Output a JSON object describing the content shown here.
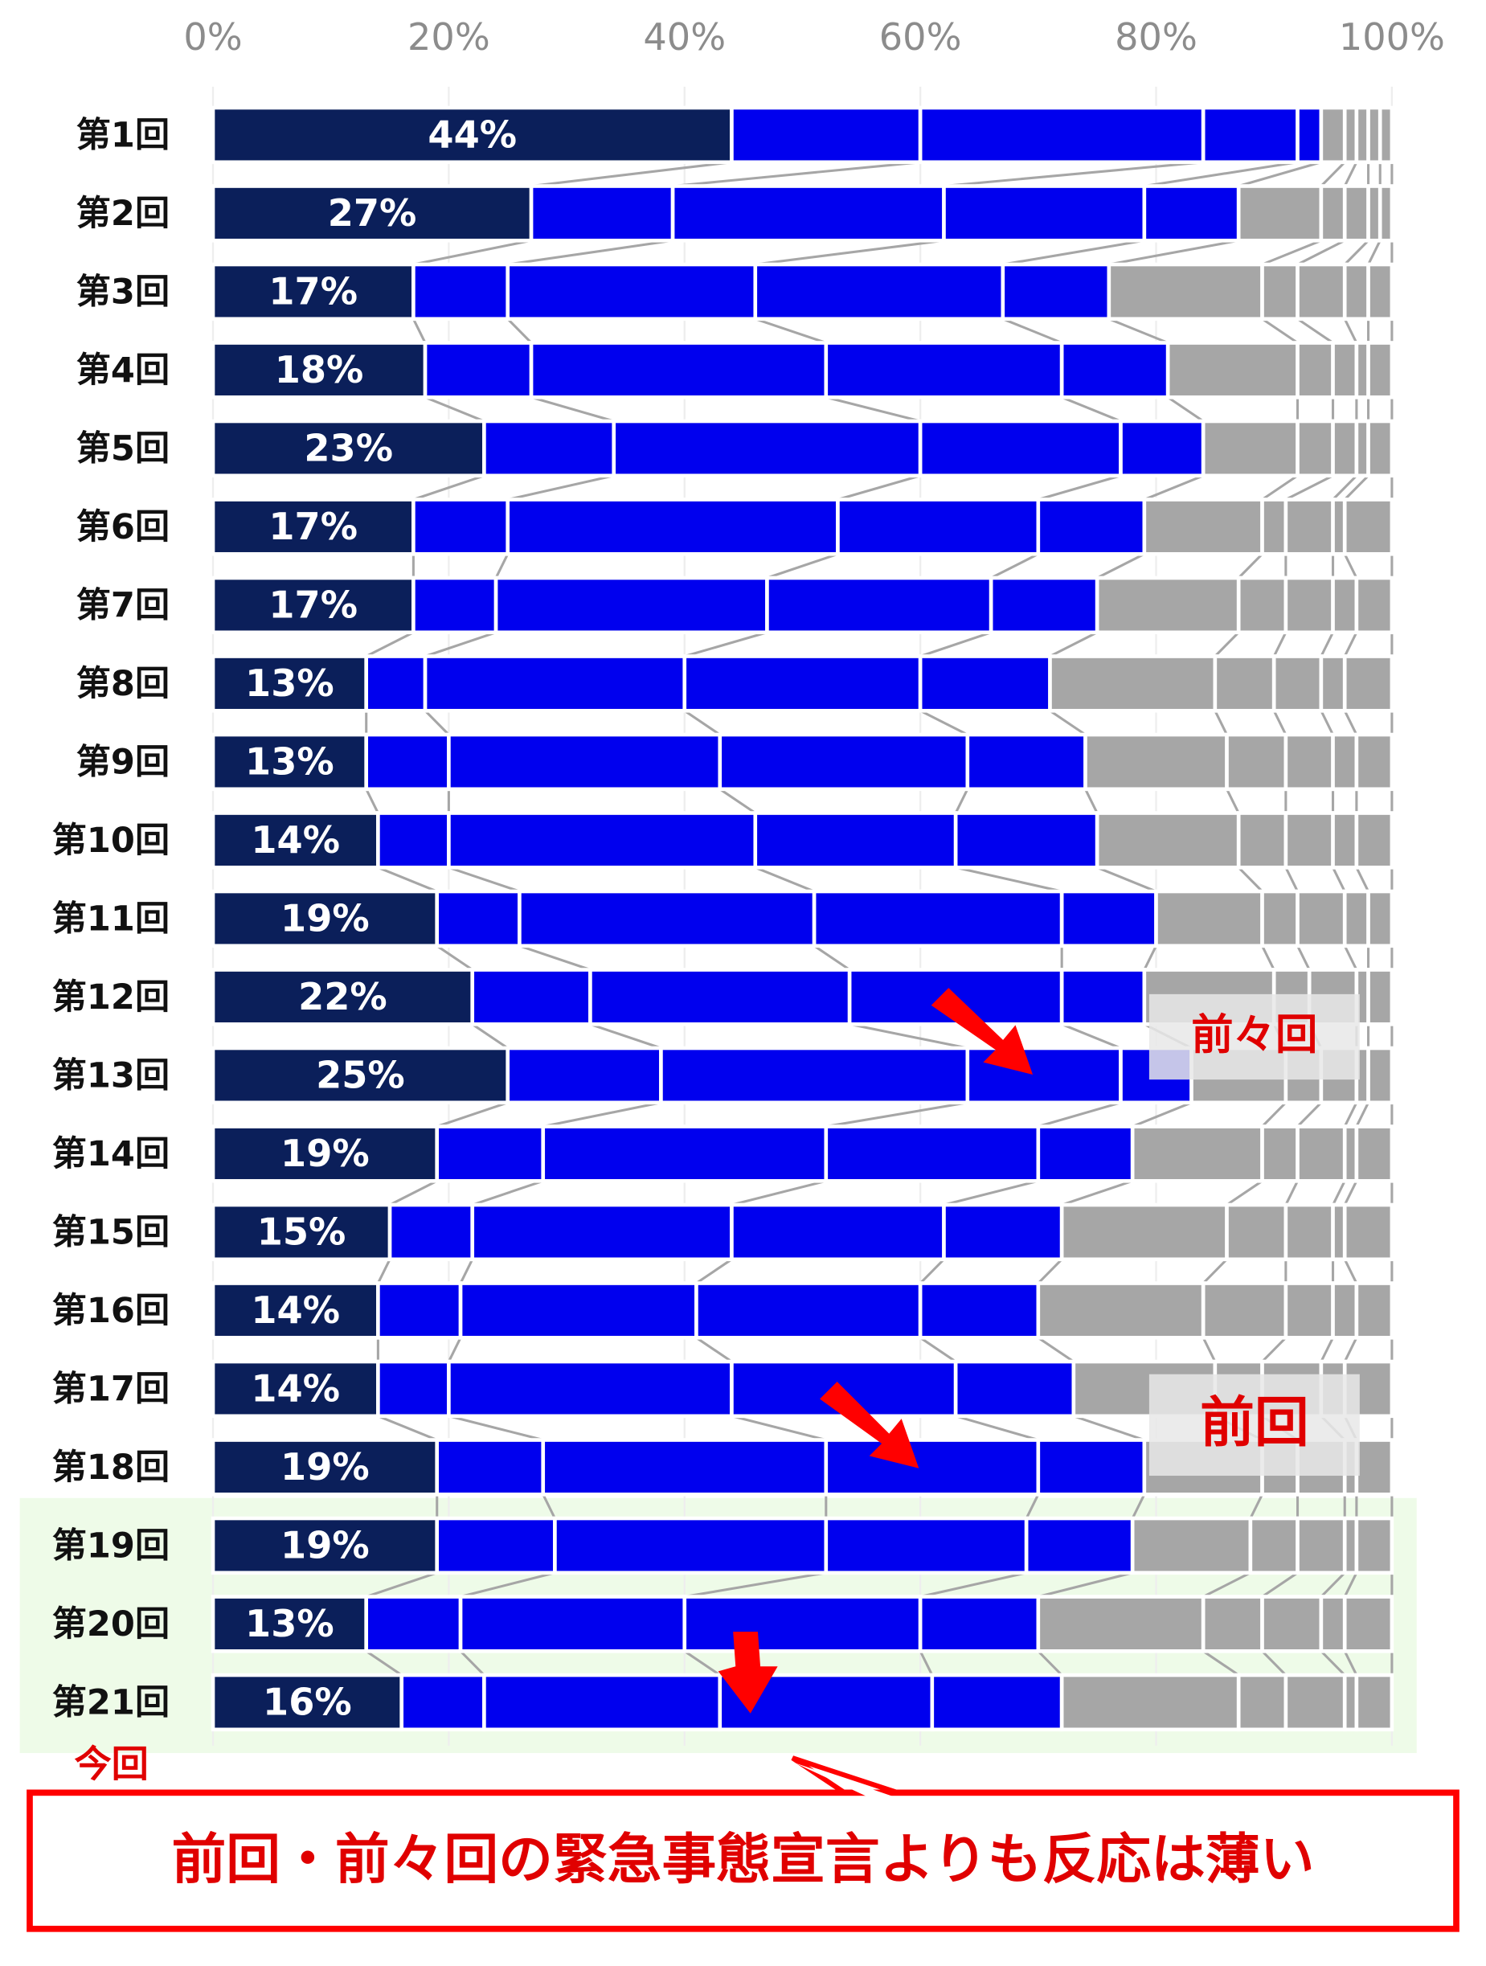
{
  "chart_data": {
    "type": "stacked-bar-horizontal",
    "categories": [
      "第1回",
      "第2回",
      "第3回",
      "第4回",
      "第5回",
      "第6回",
      "第7回",
      "第8回",
      "第9回",
      "第10回",
      "第11回",
      "第12回",
      "第13回",
      "第14回",
      "第15回",
      "第16回",
      "第17回",
      "第18回",
      "第19回",
      "第20回",
      "第21回"
    ],
    "xlim": [
      0,
      100
    ],
    "xticks": [
      {
        "value": 0,
        "label": "0%"
      },
      {
        "value": 20,
        "label": "20%"
      },
      {
        "value": 40,
        "label": "40%"
      },
      {
        "value": 60,
        "label": "60%"
      },
      {
        "value": 80,
        "label": "80%"
      },
      {
        "value": 100,
        "label": "100%"
      }
    ],
    "grid": true,
    "series": [
      {
        "color": "#0b1f5a",
        "values": [
          44,
          27,
          17,
          18,
          23,
          17,
          17,
          13,
          13,
          14,
          19,
          22,
          25,
          19,
          15,
          14,
          14,
          19,
          19,
          13,
          16
        ],
        "value_labels": [
          "44%",
          "27%",
          "17%",
          "18%",
          "23%",
          "17%",
          "17%",
          "13%",
          "13%",
          "14%",
          "19%",
          "22%",
          "25%",
          "19%",
          "15%",
          "14%",
          "14%",
          "19%",
          "19%",
          "13%",
          "16%"
        ]
      },
      {
        "color": "#0000ee",
        "values": [
          16,
          12,
          8,
          9,
          11,
          8,
          7,
          5,
          7,
          6,
          7,
          10,
          13,
          9,
          7,
          7,
          6,
          9,
          10,
          8,
          7
        ]
      },
      {
        "color": "#0000ee",
        "values": [
          24,
          23,
          21,
          25,
          26,
          28,
          23,
          22,
          23,
          26,
          25,
          22,
          26,
          24,
          22,
          20,
          24,
          24,
          23,
          19,
          20
        ]
      },
      {
        "color": "#0000ee",
        "values": [
          8,
          17,
          21,
          20,
          17,
          17,
          19,
          20,
          21,
          17,
          21,
          18,
          13,
          18,
          18,
          19,
          19,
          18,
          17,
          20,
          18
        ]
      },
      {
        "color": "#0000ee",
        "values": [
          2,
          8,
          9,
          9,
          7,
          9,
          9,
          11,
          10,
          12,
          8,
          7,
          6,
          8,
          10,
          10,
          10,
          9,
          9,
          10,
          11
        ]
      },
      {
        "color": "#a6a6a6",
        "values": [
          2,
          7,
          13,
          11,
          8,
          10,
          12,
          14,
          12,
          12,
          9,
          11,
          8,
          11,
          14,
          14,
          12,
          10,
          10,
          14,
          15
        ]
      },
      {
        "color": "#a6a6a6",
        "values": [
          1,
          2,
          3,
          3,
          3,
          2,
          4,
          5,
          5,
          4,
          3,
          3,
          3,
          3,
          5,
          7,
          4,
          3,
          4,
          5,
          4
        ]
      },
      {
        "color": "#a6a6a6",
        "values": [
          1,
          2,
          4,
          2,
          2,
          4,
          4,
          4,
          4,
          4,
          4,
          4,
          3,
          4,
          4,
          4,
          5,
          4,
          4,
          5,
          5
        ]
      },
      {
        "color": "#a6a6a6",
        "values": [
          1,
          1,
          2,
          1,
          1,
          1,
          2,
          2,
          2,
          2,
          2,
          1,
          1,
          1,
          1,
          2,
          2,
          1,
          1,
          2,
          1
        ]
      },
      {
        "color": "#a6a6a6",
        "values": [
          1,
          1,
          2,
          2,
          2,
          4,
          3,
          4,
          3,
          3,
          2,
          2,
          2,
          3,
          4,
          3,
          4,
          3,
          3,
          4,
          3
        ]
      }
    ],
    "annotations": {
      "prev2": "前々回",
      "prev": "前回",
      "now": "今回",
      "message": "前回・前々回の緊急事態宣言よりも反応は薄い"
    }
  }
}
